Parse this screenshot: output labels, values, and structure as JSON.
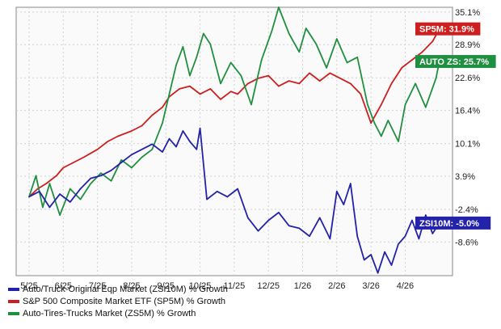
{
  "colors": {
    "background": "#ffffff",
    "plot_bg": "#fafafa",
    "grid": "#d0d0d0",
    "zsi10m": "#2222aa",
    "sp5m": "#cc1f1f",
    "zs5m": "#209040"
  },
  "chart_data": {
    "type": "line",
    "title": "",
    "xlabel": "",
    "ylabel": "",
    "grid": true,
    "legend_position": "bottom-left",
    "y_ticks": [
      "35.1%",
      "28.9%",
      "22.6%",
      "16.4%",
      "10.1%",
      "3.9%",
      "-2.4%",
      "-8.6%"
    ],
    "y_tick_values": [
      35.1,
      28.9,
      22.6,
      16.4,
      10.1,
      3.9,
      -2.4,
      -8.6
    ],
    "ylim": [
      -15,
      36
    ],
    "x_ticks": [
      "5/25",
      "6/25",
      "7/25",
      "8/25",
      "9/25",
      "10/25",
      "11/25",
      "12/25",
      "1/26",
      "2/26",
      "3/26",
      "4/26"
    ],
    "x_tick_values": [
      0,
      1,
      2,
      3,
      4,
      5,
      6,
      7,
      8,
      9,
      10,
      11
    ],
    "xlim": [
      0,
      12.1
    ],
    "series": [
      {
        "id": "sp5m",
        "name": "S&P 500 Composite Market ETF (SP5M) % Growth",
        "end_label": "SP5M: 31.9%",
        "color": "#cc1f1f",
        "x": [
          0,
          0.25,
          0.5,
          0.8,
          1.0,
          1.3,
          1.6,
          2.0,
          2.3,
          2.6,
          3.0,
          3.3,
          3.6,
          3.9,
          4.1,
          4.4,
          4.7,
          5.0,
          5.3,
          5.6,
          5.9,
          6.1,
          6.4,
          6.7,
          7.0,
          7.3,
          7.6,
          7.9,
          8.2,
          8.5,
          8.8,
          9.1,
          9.4,
          9.7,
          10.0,
          10.3,
          10.6,
          10.9,
          11.2,
          11.5,
          11.8,
          12.0
        ],
        "values": [
          0,
          1.5,
          2.5,
          4.0,
          5.5,
          6.5,
          7.5,
          9.0,
          10.5,
          11.5,
          12.5,
          13.5,
          15.5,
          17.0,
          19.0,
          20.5,
          21.0,
          19.5,
          20.5,
          18.5,
          20.0,
          19.5,
          21.5,
          22.5,
          23.0,
          21.0,
          22.0,
          21.5,
          23.5,
          22.0,
          23.5,
          22.5,
          21.5,
          19.5,
          14.0,
          17.5,
          21.5,
          24.5,
          26.0,
          27.5,
          29.5,
          31.9
        ]
      },
      {
        "id": "zs5m",
        "name": "Auto-Tires-Trucks Market (ZS5M) % Growth",
        "end_label": "AUTO ZS: 25.7%",
        "color": "#209040",
        "x": [
          0,
          0.2,
          0.4,
          0.6,
          0.9,
          1.2,
          1.5,
          1.8,
          2.1,
          2.4,
          2.7,
          3.0,
          3.3,
          3.6,
          3.9,
          4.1,
          4.3,
          4.5,
          4.7,
          4.9,
          5.1,
          5.3,
          5.6,
          5.9,
          6.2,
          6.5,
          6.8,
          7.1,
          7.3,
          7.6,
          7.9,
          8.1,
          8.4,
          8.7,
          9.0,
          9.3,
          9.6,
          9.9,
          10.1,
          10.3,
          10.5,
          10.8,
          11.0,
          11.3,
          11.6,
          11.9,
          12.0
        ],
        "values": [
          0,
          4.0,
          -2.0,
          2.5,
          -3.5,
          1.5,
          -0.5,
          2.5,
          4.5,
          3.0,
          7.0,
          5.5,
          7.5,
          9.0,
          14.0,
          19.5,
          25.0,
          28.5,
          23.0,
          26.5,
          31.0,
          29.0,
          21.5,
          25.5,
          23.0,
          17.5,
          26.0,
          31.5,
          36.0,
          31.0,
          27.5,
          32.0,
          29.0,
          24.5,
          30.0,
          25.5,
          26.5,
          17.5,
          14.0,
          11.5,
          14.5,
          10.5,
          17.5,
          21.5,
          17.0,
          22.5,
          25.7
        ]
      },
      {
        "id": "zsi10m",
        "name": "Auto/Truck-Original Eqp Market (ZSI10M) % Growth",
        "end_label": "ZSI10M: -5.0%",
        "color": "#2222aa",
        "x": [
          0,
          0.3,
          0.6,
          0.9,
          1.2,
          1.5,
          1.8,
          2.1,
          2.4,
          2.7,
          3.0,
          3.3,
          3.6,
          3.9,
          4.1,
          4.3,
          4.5,
          4.7,
          4.9,
          5.0,
          5.2,
          5.5,
          5.8,
          6.1,
          6.4,
          6.7,
          7.0,
          7.3,
          7.6,
          7.9,
          8.2,
          8.5,
          8.8,
          9.0,
          9.2,
          9.4,
          9.6,
          9.8,
          10.0,
          10.2,
          10.4,
          10.6,
          10.8,
          11.0,
          11.2,
          11.4,
          11.6,
          11.8,
          12.0
        ],
        "values": [
          0,
          1.0,
          -2.0,
          0.5,
          -1.0,
          1.5,
          3.5,
          4.0,
          5.0,
          6.5,
          8.0,
          9.0,
          10.0,
          8.5,
          11.0,
          9.5,
          12.5,
          10.5,
          9.0,
          13.0,
          -0.5,
          1.0,
          0.0,
          1.5,
          -4.0,
          -6.5,
          -4.5,
          -3.0,
          -5.5,
          -6.0,
          -7.5,
          -4.0,
          -8.0,
          1.0,
          -1.5,
          2.5,
          -7.5,
          -12.0,
          -11.0,
          -14.5,
          -10.5,
          -13.0,
          -9.0,
          -7.5,
          -4.5,
          -8.0,
          -3.5,
          -7.0,
          -5.0
        ]
      }
    ]
  }
}
